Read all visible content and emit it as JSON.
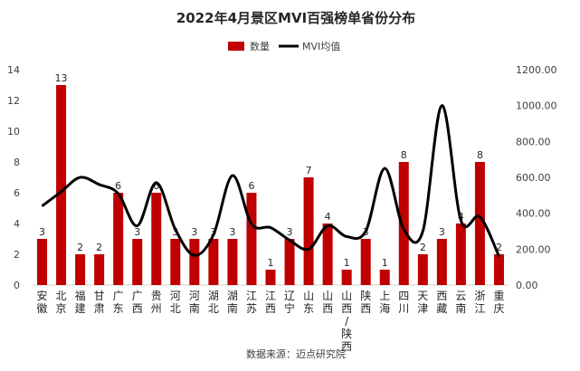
{
  "chart_data": {
    "type": "bar",
    "title": "2022年4月景区MVI百强榜单省份分布",
    "legend": {
      "placement": "top-center",
      "entries": [
        "数量",
        "MVI均值"
      ]
    },
    "categories": [
      "安徽",
      "北京",
      "福建",
      "甘肃",
      "广东",
      "广西",
      "贵州",
      "河北",
      "河南",
      "湖北",
      "湖南",
      "江苏",
      "江西",
      "辽宁",
      "山东",
      "山西",
      "山西/陕西",
      "陕西",
      "上海",
      "四川",
      "天津",
      "西藏",
      "云南",
      "浙江",
      "重庆"
    ],
    "series": [
      {
        "name": "数量",
        "type": "bar",
        "axis": "left",
        "color": "#C00000",
        "values": [
          3,
          13,
          2,
          2,
          6,
          3,
          6,
          3,
          3,
          3,
          3,
          6,
          1,
          3,
          7,
          4,
          1,
          3,
          1,
          8,
          2,
          3,
          4,
          8,
          2
        ]
      },
      {
        "name": "MVI均值",
        "type": "line",
        "axis": "right",
        "color": "#000000",
        "values": [
          440,
          520,
          600,
          560,
          510,
          330,
          570,
          310,
          165,
          280,
          610,
          340,
          320,
          250,
          200,
          330,
          270,
          300,
          650,
          310,
          300,
          1000,
          360,
          380,
          160
        ]
      }
    ],
    "left_axis": {
      "ylim": [
        0,
        14
      ],
      "ticks": [
        "0",
        "2",
        "4",
        "6",
        "8",
        "10",
        "12",
        "14"
      ]
    },
    "right_axis": {
      "ylim": [
        0,
        1200
      ],
      "ticks": [
        "0.00",
        "200.00",
        "400.00",
        "600.00",
        "800.00",
        "1000.00",
        "1200.00"
      ]
    },
    "grid": false,
    "source": "数据来源：迈点研究院"
  }
}
